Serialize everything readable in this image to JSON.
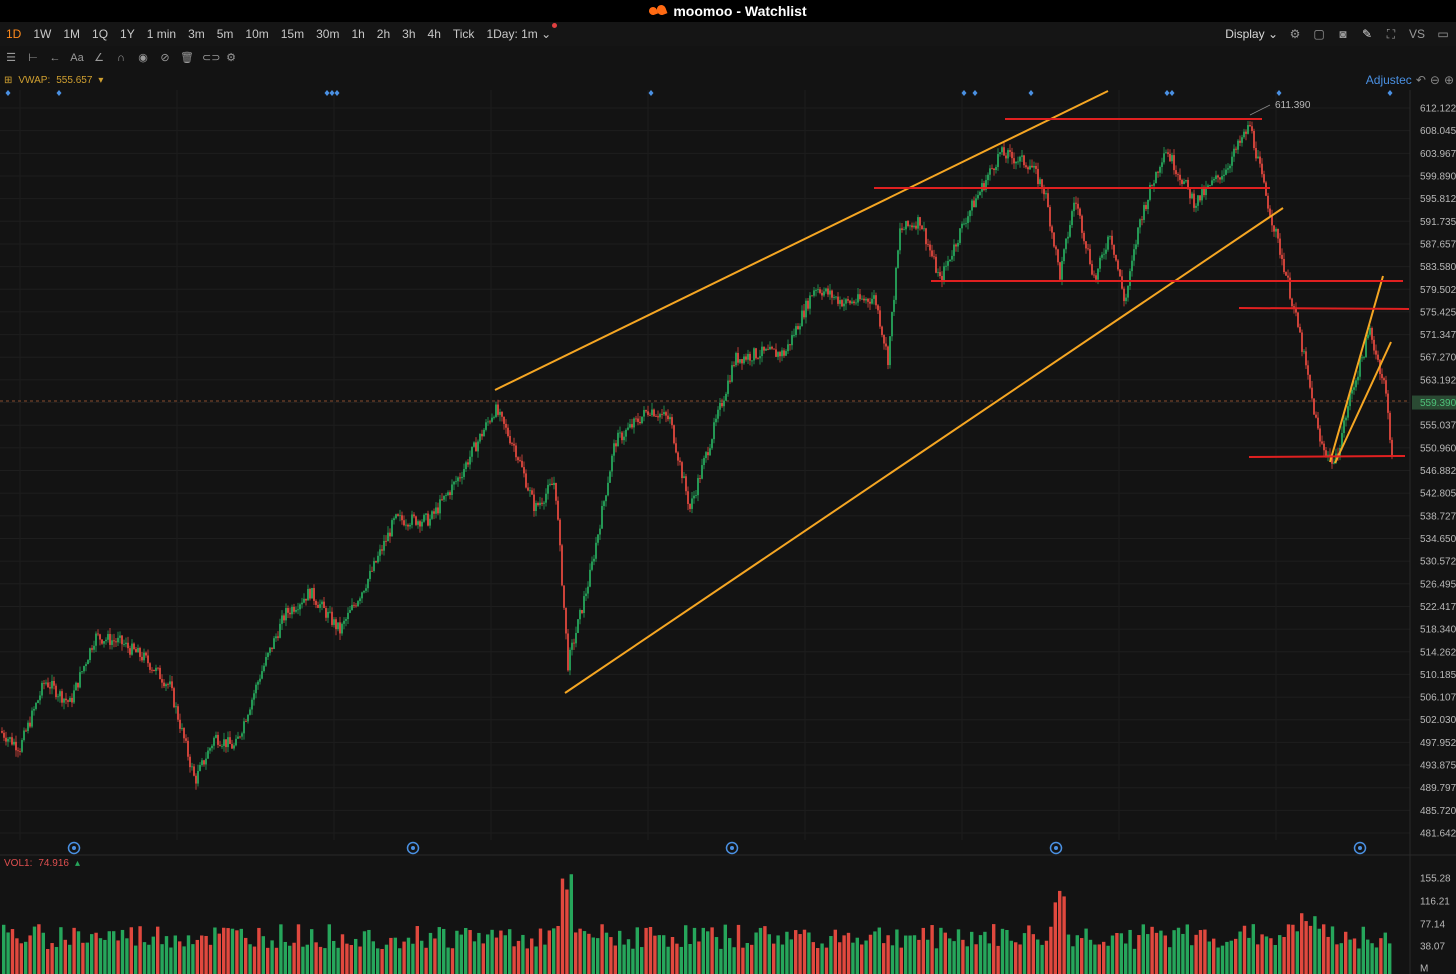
{
  "window": {
    "app": "moomoo",
    "title": "moomoo - Watchlist"
  },
  "timeframes": [
    "1D",
    "1W",
    "1M",
    "1Q",
    "1Y",
    "1 min",
    "3m",
    "5m",
    "10m",
    "15m",
    "30m",
    "1h",
    "2h",
    "3h",
    "4h",
    "Tick"
  ],
  "active_timeframe": "1D",
  "day_spec": "1Day: 1m",
  "display_label": "Display",
  "indicator": {
    "name": "VWAP:",
    "value": "555.657"
  },
  "adjusted_label": "Adjustec",
  "vol_indicator": {
    "name": "VOL1:",
    "value": "74.916"
  },
  "colors": {
    "up": "#26a65b",
    "down": "#e0483e",
    "accent": "#ff8a1c",
    "trendline": "#f5a623",
    "level": "#e02020",
    "price_box": "#2a4a33"
  },
  "icons": [
    "layout-icon",
    "bar-style-icon",
    "back-icon",
    "text-icon",
    "line-tool-icon",
    "magnet-icon",
    "eye-icon",
    "hide-icon",
    "trash-icon",
    "link-icon",
    "settings-icon",
    "camera-icon",
    "pencil-icon",
    "fullscreen-icon",
    "square-icon"
  ],
  "chart_data": {
    "type": "candlestick",
    "y_ticks": [
      "612.122",
      "608.045",
      "603.967",
      "599.890",
      "595.812",
      "591.735",
      "587.657",
      "583.580",
      "579.502",
      "575.425",
      "571.347",
      "567.270",
      "563.192",
      "559.390",
      "555.037",
      "550.960",
      "546.882",
      "542.805",
      "538.727",
      "534.650",
      "530.572",
      "526.495",
      "522.417",
      "518.340",
      "514.262",
      "510.185",
      "506.107",
      "502.030",
      "497.952",
      "493.875",
      "489.797",
      "485.720",
      "481.642"
    ],
    "ylim": [
      481.642,
      612.122
    ],
    "last_price": "559.390",
    "high_marker": "611.390",
    "vol_ticks": [
      "155.28",
      "116.21",
      "77.14",
      "38.07",
      "M"
    ],
    "series": [
      {
        "name": "price",
        "points": [
          [
            0,
            500
          ],
          [
            20,
            497
          ],
          [
            45,
            509
          ],
          [
            70,
            505
          ],
          [
            95,
            517
          ],
          [
            120,
            516
          ],
          [
            145,
            513
          ],
          [
            170,
            508
          ],
          [
            195,
            491
          ],
          [
            215,
            499
          ],
          [
            235,
            497
          ],
          [
            260,
            510
          ],
          [
            285,
            521
          ],
          [
            310,
            525
          ],
          [
            340,
            518
          ],
          [
            370,
            528
          ],
          [
            395,
            538
          ],
          [
            430,
            538
          ],
          [
            460,
            546
          ],
          [
            495,
            558
          ],
          [
            515,
            551
          ],
          [
            535,
            540
          ],
          [
            555,
            545
          ],
          [
            568,
            512
          ],
          [
            590,
            528
          ],
          [
            615,
            552
          ],
          [
            650,
            558
          ],
          [
            670,
            556
          ],
          [
            690,
            540
          ],
          [
            715,
            555
          ],
          [
            735,
            567
          ],
          [
            760,
            568
          ],
          [
            785,
            568
          ],
          [
            815,
            580
          ],
          [
            845,
            577
          ],
          [
            875,
            578
          ],
          [
            888,
            567
          ],
          [
            900,
            590
          ],
          [
            920,
            592
          ],
          [
            940,
            581
          ],
          [
            965,
            592
          ],
          [
            1000,
            604
          ],
          [
            1030,
            602
          ],
          [
            1045,
            597
          ],
          [
            1060,
            582
          ],
          [
            1075,
            596
          ],
          [
            1095,
            581
          ],
          [
            1110,
            590
          ],
          [
            1125,
            577
          ],
          [
            1140,
            592
          ],
          [
            1165,
            605
          ],
          [
            1195,
            595
          ],
          [
            1225,
            601
          ],
          [
            1250,
            609
          ],
          [
            1265,
            597
          ],
          [
            1285,
            583
          ],
          [
            1300,
            571
          ],
          [
            1320,
            552
          ],
          [
            1335,
            548
          ],
          [
            1350,
            560
          ],
          [
            1370,
            572
          ],
          [
            1385,
            562
          ],
          [
            1392,
            550
          ]
        ]
      }
    ],
    "trendlines_orange": [
      [
        [
          495,
          390
        ],
        [
          1108,
          91
        ]
      ],
      [
        [
          565,
          693
        ],
        [
          1283,
          208
        ]
      ],
      [
        [
          1330,
          462
        ],
        [
          1383,
          276
        ]
      ],
      [
        [
          1335,
          463
        ],
        [
          1391,
          342
        ]
      ]
    ],
    "levels_red": [
      [
        [
          1005,
          119
        ],
        [
          1262,
          119
        ]
      ],
      [
        [
          874,
          188
        ],
        [
          1270,
          188
        ]
      ],
      [
        [
          931,
          281
        ],
        [
          1403,
          281
        ]
      ],
      [
        [
          1239,
          308
        ],
        [
          1409,
          309
        ]
      ],
      [
        [
          1249,
          457
        ],
        [
          1405,
          456
        ]
      ]
    ]
  }
}
